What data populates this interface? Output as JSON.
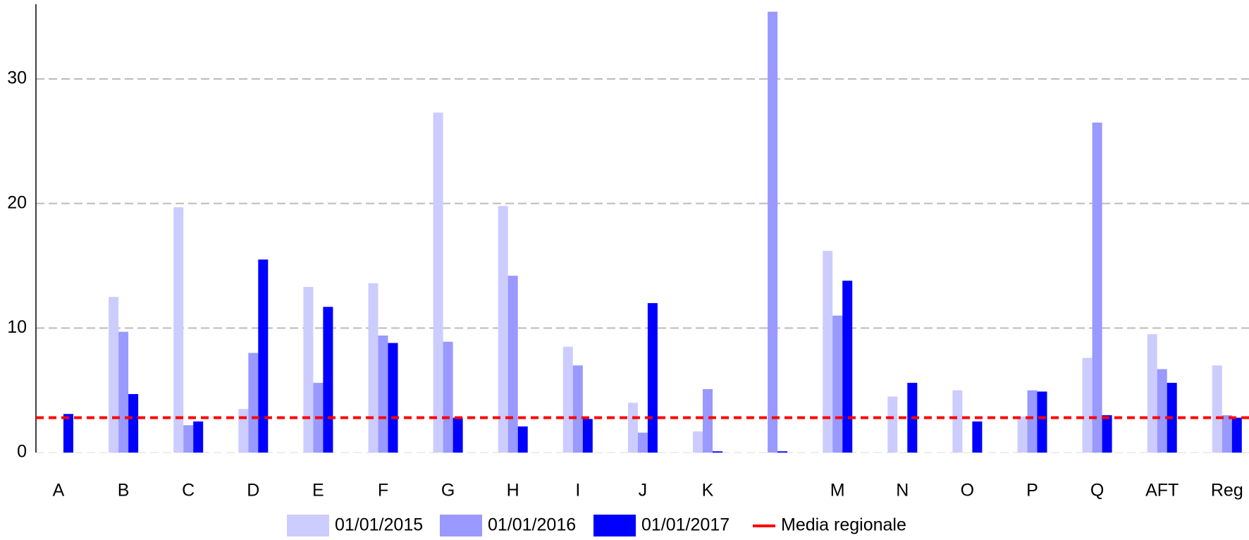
{
  "chart_data": {
    "type": "bar",
    "categories": [
      "A",
      "B",
      "C",
      "D",
      "E",
      "F",
      "G",
      "H",
      "I",
      "J",
      "K",
      null,
      "M",
      "N",
      "O",
      "P",
      "Q",
      "AFT",
      "Reg"
    ],
    "series": [
      {
        "name": "01/01/2015",
        "color": "#ccccff",
        "values": [
          0,
          12.5,
          19.7,
          3.5,
          13.3,
          13.6,
          27.3,
          19.8,
          8.5,
          4.0,
          1.7,
          null,
          16.2,
          4.5,
          5.0,
          2.9,
          7.6,
          9.5,
          7.0
        ]
      },
      {
        "name": "01/01/2016",
        "color": "#9999ff",
        "values": [
          0,
          9.7,
          2.2,
          8.0,
          5.6,
          9.4,
          8.9,
          14.2,
          7.0,
          1.6,
          5.1,
          35.4,
          11.0,
          0,
          0,
          5.0,
          26.5,
          6.7,
          3.0
        ]
      },
      {
        "name": "01/01/2017",
        "color": "#0000ff",
        "values": [
          3.1,
          4.7,
          2.5,
          15.5,
          11.7,
          8.8,
          2.8,
          2.1,
          2.7,
          12.0,
          0.1,
          0.1,
          13.8,
          5.6,
          2.5,
          4.9,
          3.0,
          5.6,
          2.8
        ]
      }
    ],
    "reference": {
      "name": "Media regionale",
      "value": 2.8,
      "color": "#ff0000"
    },
    "ylim": [
      0,
      36
    ],
    "yticks": [
      0,
      10,
      20,
      30
    ],
    "grid": true
  }
}
